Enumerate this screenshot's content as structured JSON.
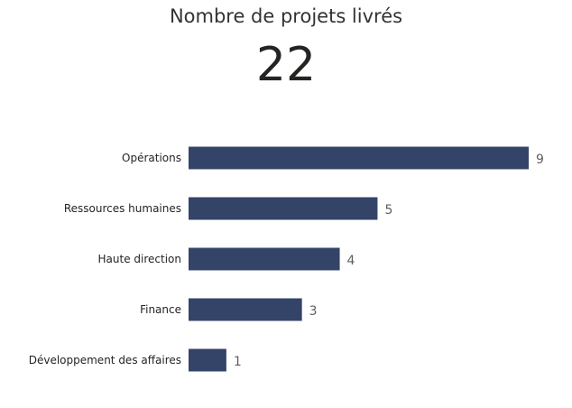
{
  "header": {
    "title": "Nombre de projets livrés",
    "kpi_value": "22"
  },
  "colors": {
    "bar": "#344468",
    "axis": "#666666"
  },
  "chart_data": {
    "type": "bar",
    "orientation": "horizontal",
    "categories": [
      "Opérations",
      "Ressources humaines",
      "Haute direction",
      "Finance",
      "Développement des affaires"
    ],
    "values": [
      9,
      5,
      4,
      3,
      1
    ],
    "xlim": [
      0,
      9
    ],
    "data_labels": true,
    "grid": false,
    "legend": "none"
  }
}
